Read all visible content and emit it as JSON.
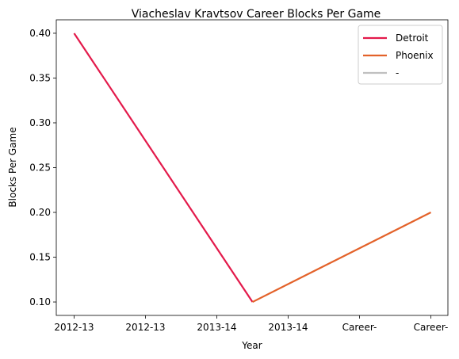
{
  "chart_data": {
    "type": "line",
    "title": "Viacheslav Kravtsov Career Blocks Per Game",
    "xlabel": "Year",
    "ylabel": "Blocks Per Game",
    "categories": [
      "2012-13",
      "2012-13",
      "2013-14",
      "2013-14",
      "Career-",
      "Career-"
    ],
    "ylim": [
      0.085,
      0.415
    ],
    "yticks": [
      "0.10",
      "0.15",
      "0.20",
      "0.25",
      "0.30",
      "0.35",
      "0.40"
    ],
    "grid": false,
    "legend_position": "top-right",
    "series": [
      {
        "name": "Detroit",
        "color": "#e31a4b",
        "points": [
          [
            0,
            0.4
          ],
          [
            2.5,
            0.1
          ]
        ]
      },
      {
        "name": "Phoenix",
        "color": "#e3622a",
        "points": [
          [
            2.5,
            0.1
          ],
          [
            5,
            0.2
          ]
        ]
      },
      {
        "name": "-",
        "color": "#c0c0c0",
        "points": []
      }
    ]
  }
}
